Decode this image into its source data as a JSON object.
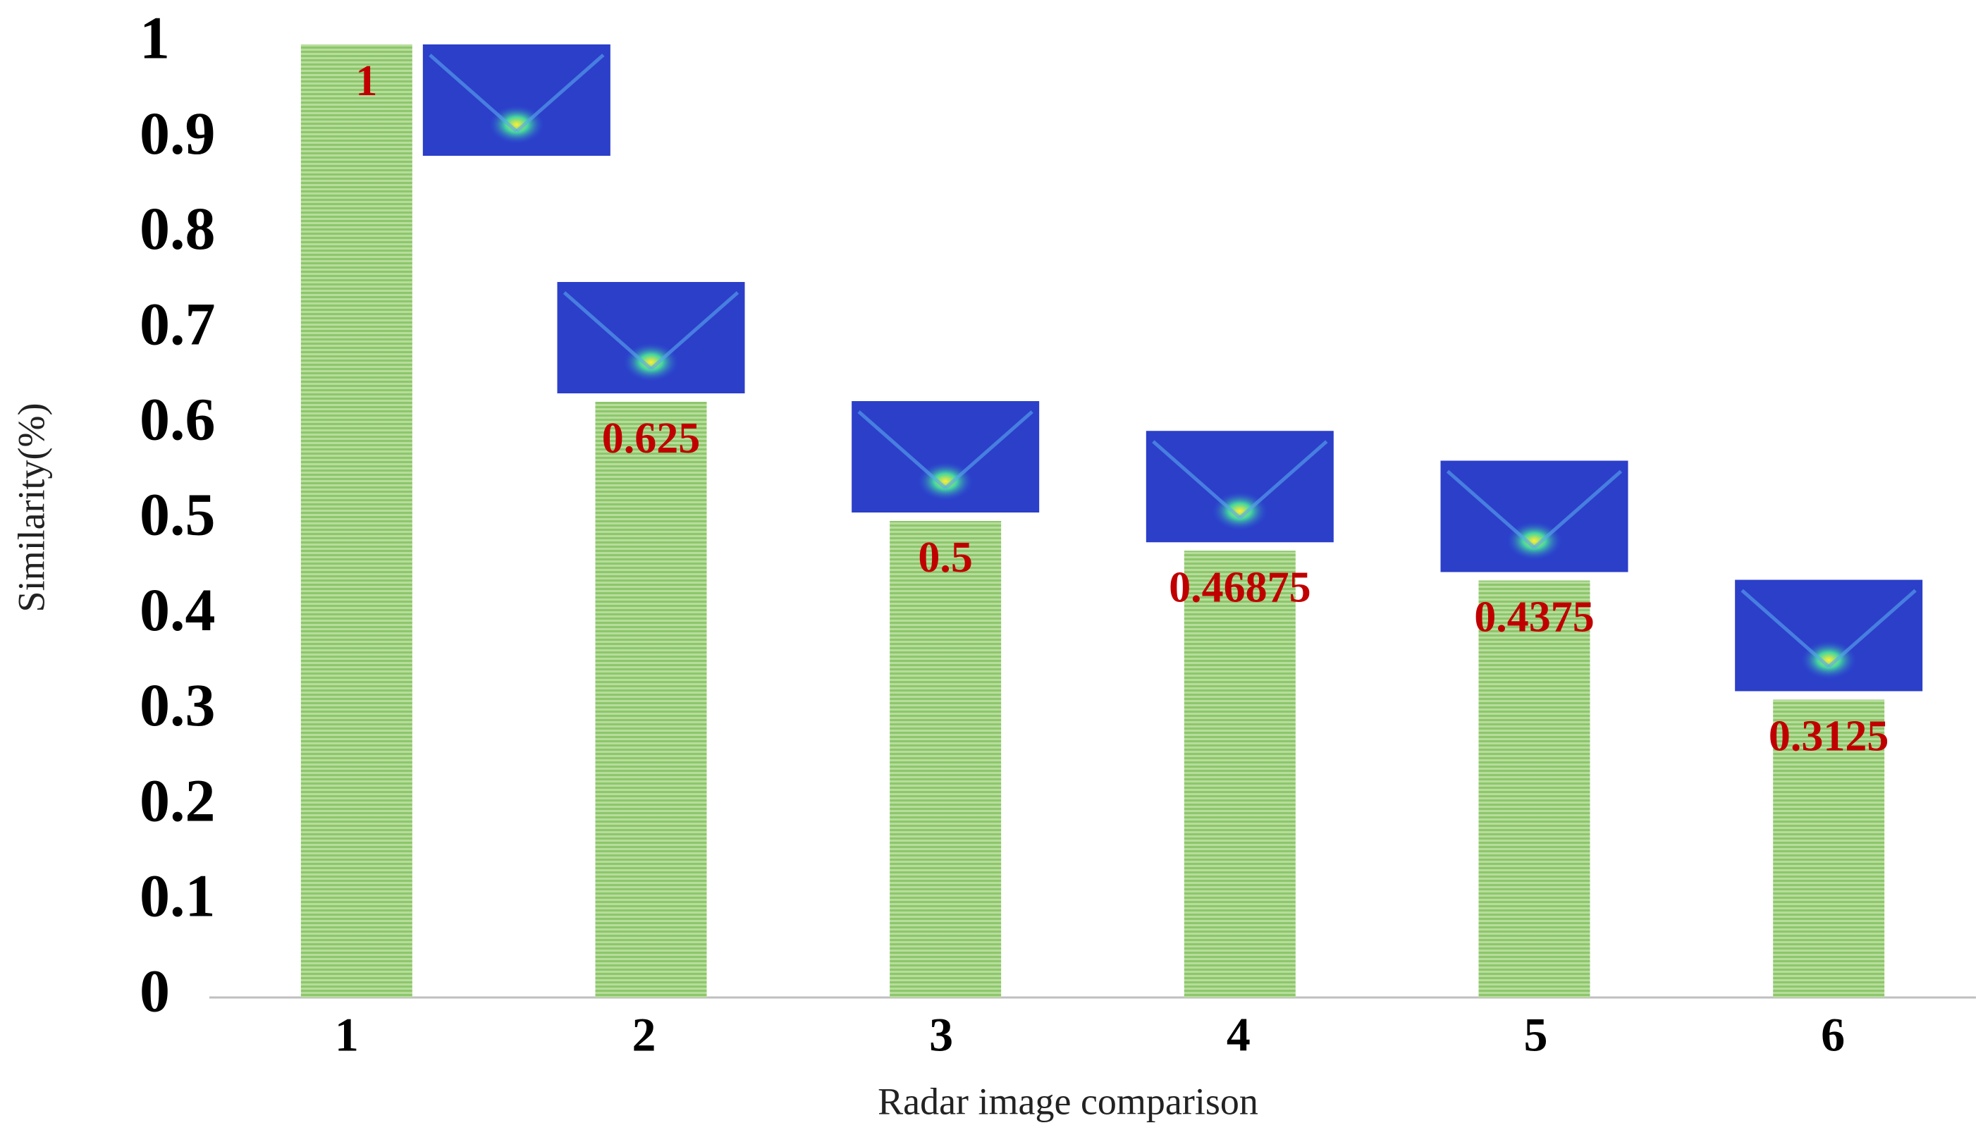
{
  "chart_data": {
    "type": "bar",
    "x_label": "Radar image comparison",
    "y_label": "Similarity(%)",
    "categories": [
      "1",
      "2",
      "3",
      "4",
      "5",
      "6"
    ],
    "values": [
      1,
      0.625,
      0.5,
      0.46875,
      0.4375,
      0.3125
    ],
    "color": "#8dc66b",
    "label_color": "#c00000",
    "ylim": [
      0,
      1
    ],
    "yticks": [
      0,
      0.1,
      0.2,
      0.3,
      0.4,
      0.5,
      0.6,
      0.7,
      0.8,
      0.9,
      1
    ],
    "grid": false
  }
}
